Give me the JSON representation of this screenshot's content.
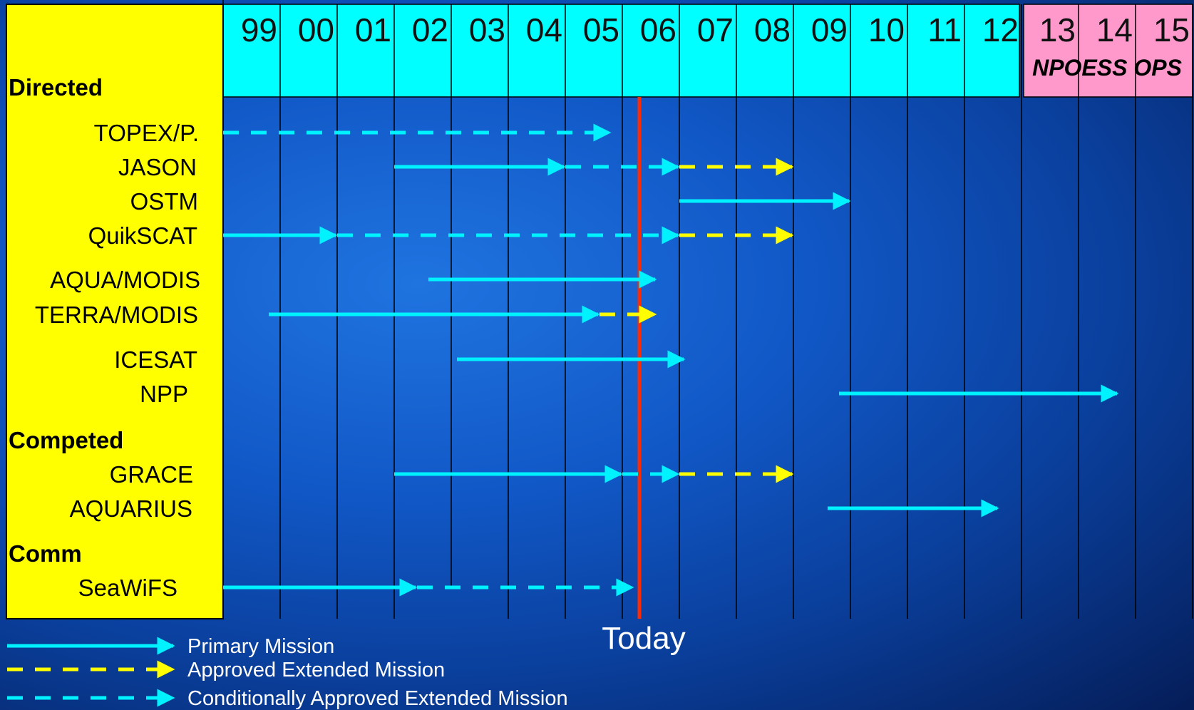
{
  "chart_data": {
    "type": "timeline",
    "title": "",
    "years": [
      "99",
      "00",
      "01",
      "02",
      "03",
      "04",
      "05",
      "06",
      "07",
      "08",
      "09",
      "10",
      "11",
      "12",
      "13",
      "14",
      "15"
    ],
    "ops_period": {
      "label": "NPOESS OPS",
      "start": "13",
      "end": "15"
    },
    "today": {
      "label": "Today",
      "value": 7.3
    },
    "groups": [
      {
        "label": "Directed",
        "missions": [
          {
            "name": "TOPEX/P.",
            "segments": [
              {
                "type": "conditional",
                "start": 0,
                "end": 6.8
              }
            ]
          },
          {
            "name": "JASON",
            "segments": [
              {
                "type": "primary",
                "start": 3.0,
                "end": 6.0
              },
              {
                "type": "conditional",
                "start": 6.0,
                "end": 8.0
              },
              {
                "type": "approved",
                "start": 8.0,
                "end": 10.0
              }
            ]
          },
          {
            "name": "OSTM",
            "segments": [
              {
                "type": "primary",
                "start": 8.0,
                "end": 11.0
              }
            ]
          },
          {
            "name": "QuikSCAT",
            "segments": [
              {
                "type": "primary",
                "start": 0,
                "end": 2.0
              },
              {
                "type": "conditional",
                "start": 2.0,
                "end": 8.0
              },
              {
                "type": "approved",
                "start": 8.0,
                "end": 10.0
              }
            ]
          },
          {
            "name": "AQUA/MODIS",
            "segments": [
              {
                "type": "primary",
                "start": 3.6,
                "end": 7.6
              }
            ]
          },
          {
            "name": "TERRA/MODIS",
            "segments": [
              {
                "type": "primary",
                "start": 0.8,
                "end": 6.6
              },
              {
                "type": "approved",
                "start": 6.6,
                "end": 7.6
              }
            ]
          },
          {
            "name": "ICESAT",
            "segments": [
              {
                "type": "primary",
                "start": 4.1,
                "end": 8.1
              }
            ]
          },
          {
            "name": "NPP",
            "segments": [
              {
                "type": "primary",
                "start": 10.8,
                "end": 15.7
              }
            ]
          }
        ]
      },
      {
        "label": "Competed",
        "missions": [
          {
            "name": "GRACE",
            "segments": [
              {
                "type": "primary",
                "start": 3.0,
                "end": 7.0
              },
              {
                "type": "conditional",
                "start": 7.0,
                "end": 8.0
              },
              {
                "type": "approved",
                "start": 8.0,
                "end": 10.0
              }
            ]
          },
          {
            "name": "AQUARIUS",
            "segments": [
              {
                "type": "primary",
                "start": 10.6,
                "end": 13.6
              }
            ]
          }
        ]
      },
      {
        "label": "Comm",
        "missions": [
          {
            "name": "SeaWiFS",
            "segments": [
              {
                "type": "primary",
                "start": 0,
                "end": 3.4
              },
              {
                "type": "conditional",
                "start": 3.4,
                "end": 7.2
              }
            ]
          }
        ]
      }
    ],
    "legend": [
      {
        "type": "primary",
        "label": "Primary Mission"
      },
      {
        "type": "approved",
        "label": "Approved Extended Mission"
      },
      {
        "type": "conditional",
        "label": "Conditionally Approved Extended Mission"
      }
    ],
    "colors": {
      "primary": "#00f2ff",
      "approved": "#ffff00",
      "conditional": "#00f2ff",
      "header": "#00ffff",
      "ops_header": "#ff99cc",
      "label_panel": "#ffff00",
      "today_line": "#ff2a00",
      "grid": "#000000"
    }
  }
}
